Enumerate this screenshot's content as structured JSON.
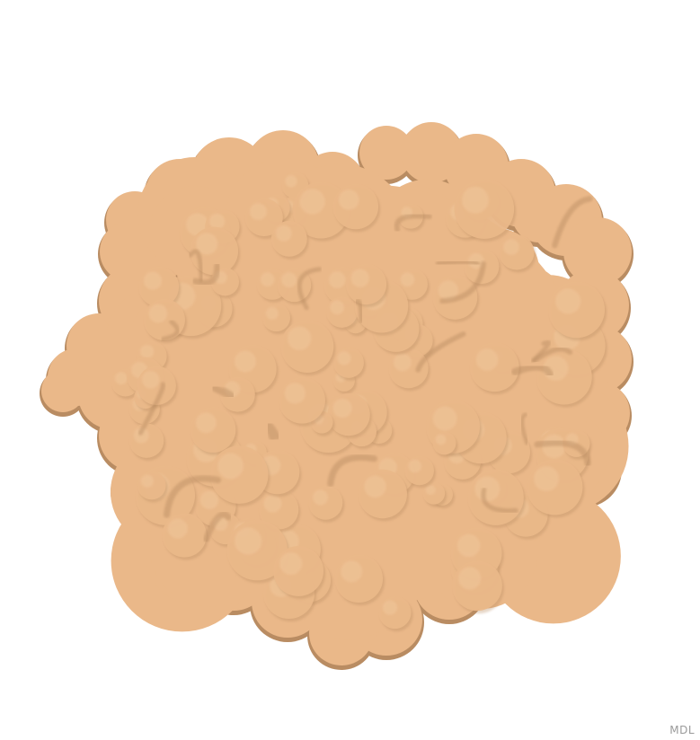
{
  "viewer": {
    "background_color": "#ffffff",
    "surface_color": "#eab889",
    "surface_shadow_color": "#b98c62",
    "surface_highlight_color": "#f4cfa6",
    "watermark": "MDL"
  }
}
